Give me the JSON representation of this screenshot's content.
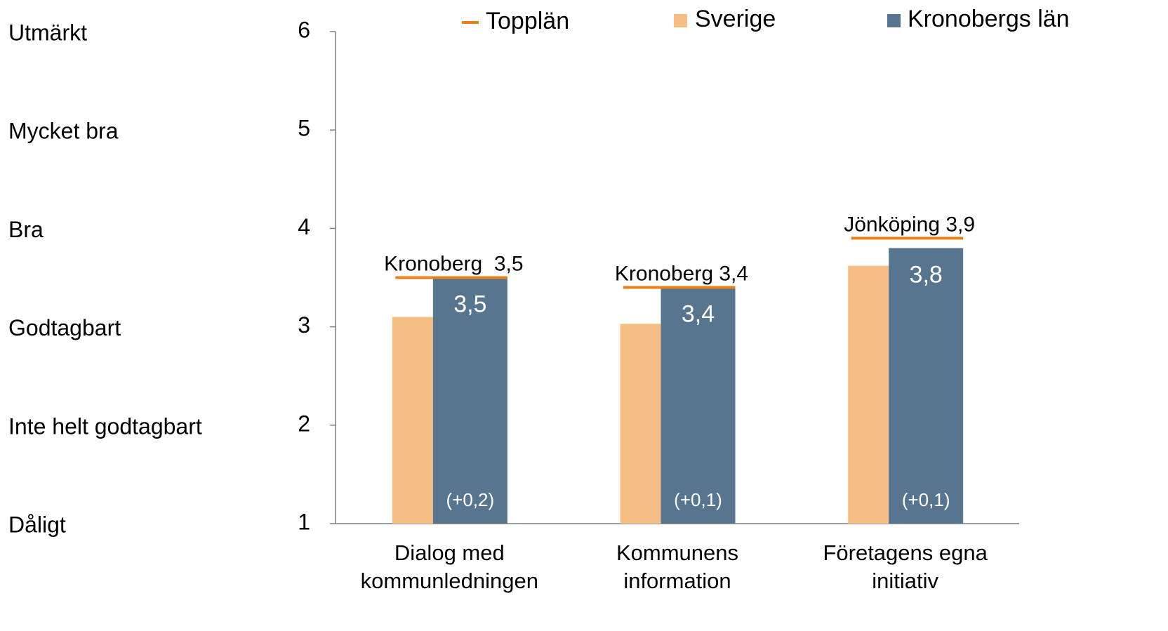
{
  "chart_data": {
    "type": "bar",
    "categories": [
      "Dialog med kommunledningen",
      "Kommunens information",
      "Företagens egna initiativ"
    ],
    "series": [
      {
        "name": "Sverige",
        "color": "#f5be84",
        "values": [
          3.1,
          3.03,
          3.62
        ]
      },
      {
        "name": "Kronobergs län",
        "color": "#57758f",
        "values": [
          3.5,
          3.4,
          3.8
        ],
        "value_labels": [
          "3,5",
          "3,4",
          "3,8"
        ],
        "annotations": [
          "(+0,2)",
          "(+0,1)",
          "(+0,1)"
        ]
      },
      {
        "name": "Topplän",
        "color": "#e8801a",
        "marker": "line",
        "values": [
          3.5,
          3.4,
          3.9
        ],
        "value_labels": [
          "Kronoberg  3,5",
          "Kronoberg 3,4",
          "Jönköping 3,9"
        ]
      }
    ],
    "rating_labels": [
      "Dåligt",
      "Inte helt godtagbart",
      "Godtagbart",
      "Bra",
      "Mycket bra",
      "Utmärkt"
    ],
    "ylim": [
      1,
      6
    ],
    "yticks": [
      1,
      2,
      3,
      4,
      5,
      6
    ],
    "grid": false,
    "legend": "top"
  }
}
